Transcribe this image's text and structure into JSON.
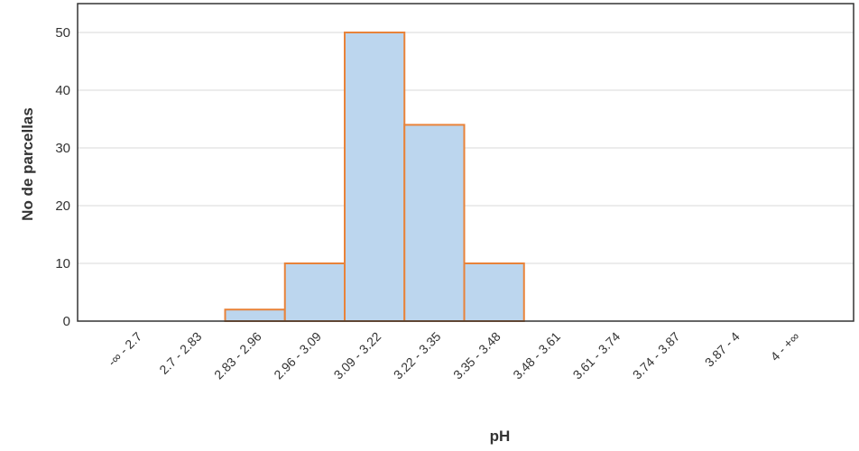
{
  "chart_data": {
    "type": "bar",
    "xlabel": "pH",
    "ylabel": "No de parcellas",
    "categories": [
      "-∞ - 2.7",
      "2.7 - 2.83",
      "2.83 - 2.96",
      "2.96 - 3.09",
      "3.09 - 3.22",
      "3.22 - 3.35",
      "3.35 - 3.48",
      "3.48 - 3.61",
      "3.61 - 3.74",
      "3.74 - 3.87",
      "3.87 - 4",
      "4 - +∞"
    ],
    "values": [
      0,
      0,
      2,
      10,
      50,
      34,
      10,
      0,
      0,
      0,
      0,
      0
    ],
    "ylim": [
      0,
      55
    ],
    "yticks": [
      0,
      10,
      20,
      30,
      40,
      50
    ],
    "grid": true,
    "colors": {
      "bar_fill": "#bcd6ee",
      "bar_stroke": "#e8833a",
      "grid": "#d9d9d9",
      "axis": "#333333"
    }
  }
}
